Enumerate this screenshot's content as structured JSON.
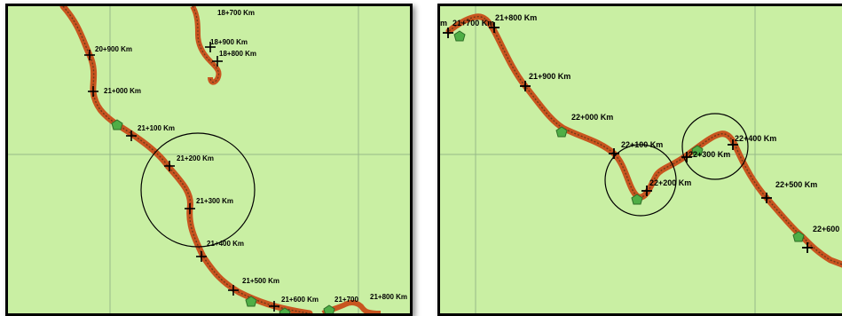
{
  "colors": {
    "terrain": "#c9efa3",
    "grid": "#98b88a",
    "road_casing": "#c8551f",
    "road_centerline": "#6b3a1a",
    "station_fill": "#4fae46",
    "cross": "#000000",
    "label": "#000000"
  },
  "icons": {
    "kilometer_marker": "cross-icon",
    "station": "green-pentagon-icon",
    "highlight": "circle-outline"
  },
  "left_map": {
    "labels": [
      "20+900 Km",
      "21+000 Km",
      "21+100 Km",
      "21+200 Km",
      "21+300 Km",
      "21+400 Km",
      "21+500 Km",
      "21+600 Km",
      "21+700",
      "21+800 Km",
      "18+900 Km",
      "18+800 Km",
      "18+700 Km"
    ]
  },
  "right_map": {
    "labels": [
      "21+700 Km",
      "21+800 Km",
      "21+900 Km",
      "22+000 Km",
      "22+100 Km",
      "22+200 Km",
      "22+300 Km",
      "22+400 Km",
      "22+500 Km",
      "22+600"
    ],
    "cut_off_text": "m"
  }
}
